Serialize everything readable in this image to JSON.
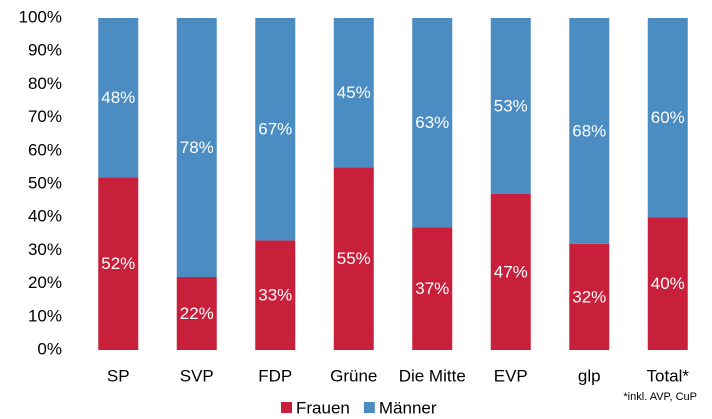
{
  "chart_data": {
    "type": "stacked_bar",
    "categories": [
      "SP",
      "SVP",
      "FDP",
      "Grüne",
      "Die Mitte",
      "EVP",
      "glp",
      "Total*"
    ],
    "series": [
      {
        "name": "Frauen",
        "color": "#c8203a",
        "values": [
          52,
          22,
          33,
          55,
          37,
          47,
          32,
          40
        ],
        "value_labels": [
          "52%",
          "22%",
          "33%",
          "55%",
          "37%",
          "47%",
          "32%",
          "40%"
        ]
      },
      {
        "name": "Männer",
        "color": "#4b8dc3",
        "values": [
          48,
          78,
          67,
          45,
          63,
          53,
          68,
          60
        ],
        "value_labels": [
          "48%",
          "78%",
          "67%",
          "45%",
          "63%",
          "53%",
          "68%",
          "60%"
        ]
      }
    ],
    "ylim": [
      0,
      100
    ],
    "yticks": [
      {
        "value": 0,
        "label": "0%"
      },
      {
        "value": 10,
        "label": "10%"
      },
      {
        "value": 20,
        "label": "20%"
      },
      {
        "value": 30,
        "label": "30%"
      },
      {
        "value": 40,
        "label": "40%"
      },
      {
        "value": 50,
        "label": "50%"
      },
      {
        "value": 60,
        "label": "60%"
      },
      {
        "value": 70,
        "label": "70%"
      },
      {
        "value": 80,
        "label": "80%"
      },
      {
        "value": 90,
        "label": "90%"
      },
      {
        "value": 100,
        "label": "100%"
      }
    ],
    "annotation": "*inkl. AVP, CuP",
    "legend": "bottom"
  }
}
